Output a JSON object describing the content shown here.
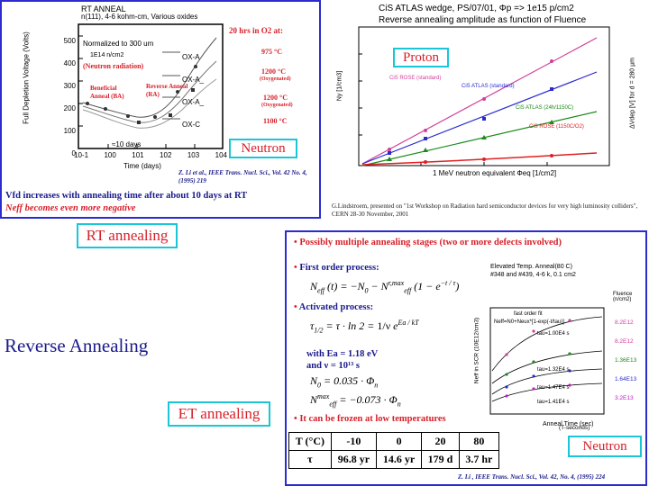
{
  "top_left": {
    "plot_title": "RT ANNEAL",
    "plot_subtitle": "n(111), 4-6 kohm-cm, Various oxides",
    "ylabel": "Full Depletion Voltage (Volts)",
    "xlabel": "Time (days)",
    "yticks": [
      "500",
      "400",
      "300",
      "200",
      "100",
      "0"
    ],
    "xticks": [
      "10-1",
      "100",
      "101",
      "102",
      "103",
      "104"
    ],
    "normalized": "Normalized to 300 um",
    "fluence": "1E14 n/cm2",
    "neutron_radiation": "(Neutron radiation)",
    "beneficial_annealing": "Beneficial Anneal (BA)",
    "reverse_annealing": "Reverse Anneal (RA)",
    "ten_days": "≈10 days",
    "oxygen_header": "20 hrs in O2 at:",
    "legend": [
      {
        "name": "OX-A",
        "temp": "975 °C",
        "note": ""
      },
      {
        "name": "OX-A_",
        "temp": "1200 °C",
        "note": "(Oxygenated)"
      },
      {
        "name": "OX-A_",
        "temp": "1200 °C",
        "note": "(Oxygenated)"
      },
      {
        "name": "OX-C",
        "temp": "1100 °C",
        "note": ""
      }
    ],
    "citation": "Z. Li et al., IEEE Trans. Nucl. Sci., Vol. 42 No. 4, (1995) 219",
    "neutron_label": "Neutron",
    "caption_line1": "Vfd increases with annealing time after about 10 days at RT",
    "caption_line2": "Neff becomes even more negative"
  },
  "top_right": {
    "title_line1": "CiS ATLAS wedge, PS/07/01, Φp => 1e15 p/cm2",
    "title_line2": "Reverse annealing amplitude as function of Fluence",
    "proton_label": "Proton",
    "ylabel_left": "Ny [1/cm3]",
    "ylabel_right": "ΔVdep [V] for d = 280 µm",
    "xlabel": "1 MeV neutron equivalent Φeq [1/cm2]",
    "series": [
      "CiS ROSE (standard)",
      "CiS ATLAS (standard)",
      "CiS ATLAS (24h/1150C)",
      "CiS ROSE (1150C/O2)"
    ],
    "footnote": "G.Lindstroem, presented on \"1st Workshop on Radiation hard semiconductor devices for very high luminosity colliders\", CERN 28-30 November, 2001"
  },
  "labels": {
    "rt_annealing": "RT annealing",
    "reverse_annealing": "Reverse Annealing",
    "et_annealing": "ET annealing",
    "neutron": "Neutron"
  },
  "bottom_right": {
    "bullet1": "Possibly multiple annealing stages (two or more defects involved)",
    "bullet2": "First order process:",
    "bullet3": "Activated process:",
    "ea": "with Ea = 1.18 eV",
    "nu": "and  ν = 10¹³ s",
    "bullet4": "It can be frozen at low temperatures",
    "inset_title1": "Elevated Temp. Anneal(80 C)",
    "inset_title2": "#348 and #439, 4-6 k, 0.1 cm2",
    "inset_ylabel": "Neff in SCR (10E12/cm3)",
    "inset_xlabel": "Anneal Time (sec)",
    "fit_title": "fast order fit",
    "fit_formula": "Neff=N0+Neux*[1-exp(-t/tau)]",
    "taus": [
      "tau=1.00E4 s",
      "tau=1.32E4 s",
      "tau=1.47E4 s",
      "tau=1.41E4 s"
    ],
    "fluence_header": "Fluence (n/cm2)",
    "fluences": [
      "8.2E12",
      "8.2E12",
      "1.36E13",
      "1.64E13",
      "3.2E13"
    ],
    "table": {
      "header": [
        "T (°C)",
        "-10",
        "0",
        "20",
        "80"
      ],
      "row": [
        "τ",
        "96.8 yr",
        "14.6 yr",
        "179 d",
        "3.7 hr"
      ]
    },
    "table_note": "(T-seconds)",
    "citation": "Z. Li , IEEE Trans. Nucl. Sci., Vol. 42, No. 4, (1995) 224"
  }
}
